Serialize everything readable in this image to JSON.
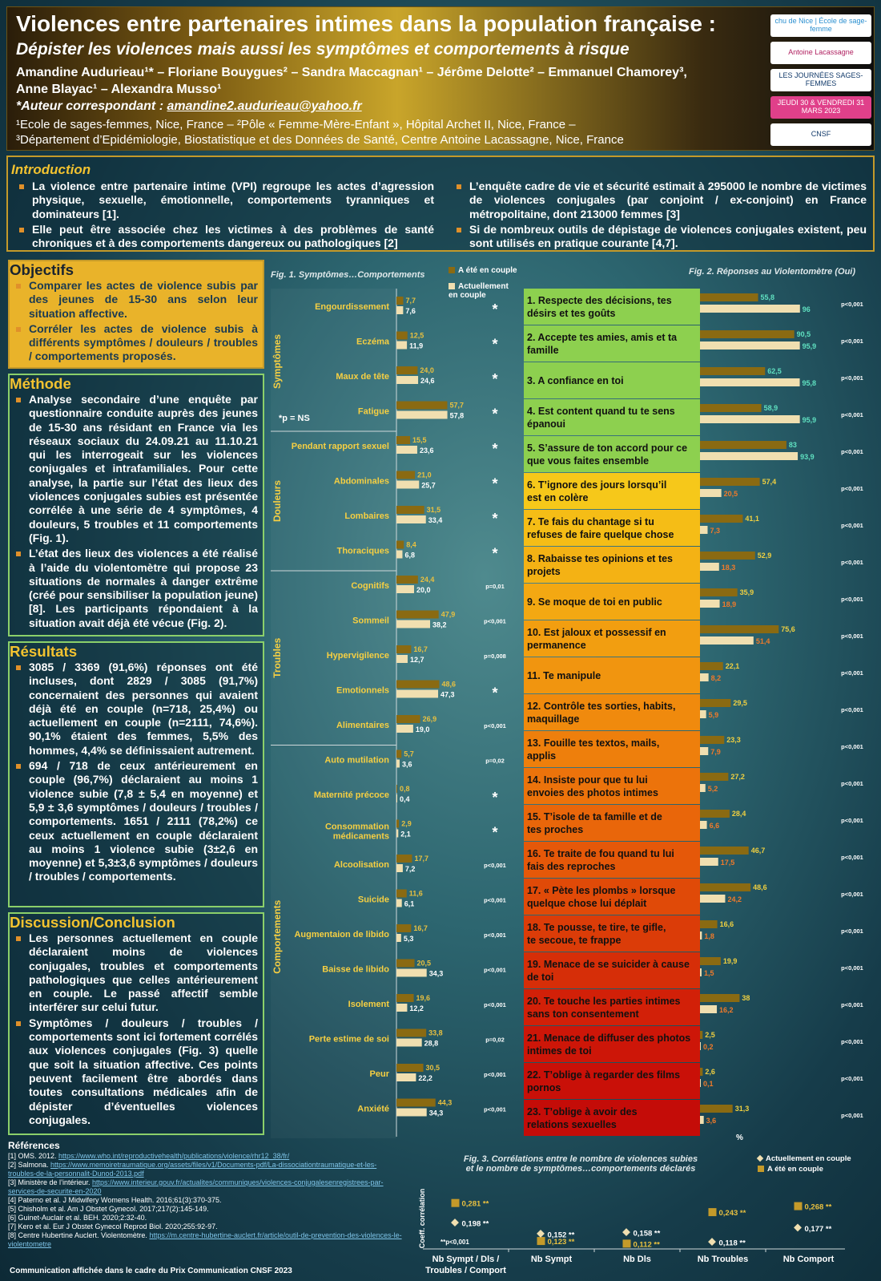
{
  "header": {
    "title": "Violences entre partenaires intimes dans la population française :",
    "subtitle": "Dépister les violences mais aussi les symptômes et comportements à risque",
    "authors_line1": "Amandine Audurieau¹* – Floriane Bouygues² – Sandra Maccagnan¹ – Jérôme Delotte² – Emmanuel Chamorey³,",
    "authors_line2": "Anne Blayac¹ – Alexandra Musso¹",
    "corresp_label": "*Auteur correspondant : ",
    "corresp_email": "amandine2.audurieau@yahoo.fr",
    "aff_line1": "¹Ecole de sages-femmes, Nice, France – ²Pôle « Femme-Mère-Enfant », Hôpital Archet II, Nice, France –",
    "aff_line2": "³Département d’Epidémiologie, Biostatistique et des Données de Santé, Centre Antoine Lacassagne, Nice, France",
    "logos": [
      {
        "text": "chu de Nice | École de sage-femme",
        "bg": "#ffffff",
        "color": "#2a8fd0"
      },
      {
        "text": "Antoine Lacassagne",
        "bg": "#ffffff",
        "color": "#b02060"
      },
      {
        "text": "LES JOURNÉES SAGES-FEMMES",
        "bg": "#ffffff",
        "color": "#123a6a"
      },
      {
        "text": "JEUDI 30 & VENDREDI 31 MARS 2023",
        "bg": "#e0408a",
        "color": "#ffffff"
      },
      {
        "text": "CNSF",
        "bg": "#ffffff",
        "color": "#123a6a"
      }
    ]
  },
  "intro": {
    "title": "Introduction",
    "left": [
      "La violence entre partenaire intime (VPI) regroupe les actes d’agression physique, sexuelle, émotionnelle, comportements tyranniques et dominateurs [1].",
      "Elle peut être associée chez  les victimes à des problèmes de santé chroniques et à des comportements dangereux ou pathologiques [2]"
    ],
    "right": [
      "L’enquête cadre de vie et sécurité estimait à 295000 le nombre de victimes de violences conjugales (par conjoint / ex-conjoint) en France métropolitaine, dont 213000 femmes [3]",
      "Si de nombreux outils de dépistage de violences conjugales existent, peu sont utilisés en pratique courante [4,7]."
    ]
  },
  "objectifs": {
    "title": "Objectifs",
    "items": [
      "Comparer les actes de violence subis par des jeunes de 15-30 ans selon leur situation affective.",
      "Corréler les actes de violence subis à différents symptômes / douleurs / troubles / comportements proposés."
    ]
  },
  "methode": {
    "title": "Méthode",
    "items": [
      "Analyse secondaire d’une enquête par questionnaire conduite auprès des jeunes de 15-30 ans résidant en France via les réseaux sociaux du 24.09.21 au 11.10.21 qui les interrogeait sur les violences conjugales et intrafamiliales. Pour cette analyse, la partie sur l’état des lieux des violences conjugales subies est présentée corrélée à une série de 4 symptômes, 4 douleurs, 5 troubles et 11 comportements (Fig. 1).",
      "L’état des lieux des violences a été réalisé à l’aide du violentomètre qui propose 23 situations de normales à danger extrême (créé pour sensibiliser la population jeune) [8]. Les participants répondaient à la situation avait déjà été vécue  (Fig. 2)."
    ]
  },
  "resultats": {
    "title": "Résultats",
    "items": [
      "3085 / 3369 (91,6%) réponses ont été incluses, dont 2829 / 3085 (91,7%) concernaient des personnes qui avaient déjà été en couple (n=718, 25,4%) ou actuellement en couple (n=2111, 74,6%). 90,1% étaient des femmes, 5,5% des hommes, 4,4% se définissaient autrement.",
      "694 / 718 de ceux antérieurement en couple (96,7%) déclaraient au moins 1 violence subie (7,8 ± 5,4 en moyenne) et 5,9 ± 3,6 symptômes / douleurs / troubles / comportements. 1651 / 2111 (78,2%) ce ceux actuellement en couple déclaraient au moins 1 violence subie (3±2,6 en moyenne) et 5,3±3,6 symptômes / douleurs / troubles / comportements."
    ]
  },
  "discussion": {
    "title": "Discussion/Conclusion",
    "items": [
      "Les personnes actuellement en couple déclaraient moins de violences conjugales, troubles et comportements pathologiques que celles antérieurement en couple. Le passé affectif semble interférer sur celui futur.",
      "Symptômes / douleurs / troubles / comportements sont ici fortement corrélés aux violences conjugales (Fig. 3) quelle que soit la situation affective. Ces points peuvent facilement être abordés dans toutes consultations médicales afin de dépister d’éventuelles violences conjugales."
    ]
  },
  "refs": {
    "title": "Références",
    "items": [
      {
        "t": "[1] OMS. 2012. ",
        "u": "https://www.who.int/reproductivehealth/publications/violence/rhr12_38/fr/"
      },
      {
        "t": "[2] Salmona. ",
        "u": "https://www.memoiretraumatique.org/assets/files/v1/Documents-pdf/La-dissociationtraumatique-et-les-troubles-de-la-personnalit-Dunod-2013.pdf"
      },
      {
        "t": "[3] Ministère de l’intérieur. ",
        "u": "https://www.interieur.gouv.fr/actualites/communiques/violences-conjugalesenregistrees-par-services-de-securite-en-2020"
      },
      {
        "t": "[4] Paterno et al. J Midwifery Womens Health. 2016;61(3):370-375.",
        "u": ""
      },
      {
        "t": "[5] Chisholm et al. Am J Obstet Gynecol. 2017;217(2):145-149.",
        "u": ""
      },
      {
        "t": "[6] Guinet-Auclair et al. BEH. 2020;2:32-40.",
        "u": ""
      },
      {
        "t": "[7] Kero et al. Eur J Obstet Gynecol Reprod Biol. 2020;255:92-97.",
        "u": ""
      },
      {
        "t": "[8] Centre Hubertine Auclert. Violentomètre. ",
        "u": "https://m.centre-hubertine-auclert.fr/article/outil-de-prevention-des-violences-le-violentometre"
      }
    ]
  },
  "footer": "Communication affichée dans le cadre du Prix Communication CNSF 2023",
  "colors": {
    "dark_bar": "#8a6a12",
    "light_bar": "#f0dfb0",
    "accent": "#f2c230",
    "green": "#8dd04f",
    "orange": "#f0a020",
    "red": "#c81010"
  },
  "chart_data": [
    {
      "type": "bar",
      "title": "Fig. 1. Symptômes…Comportements",
      "legend": [
        "A été en couple",
        "Actuellement en couple"
      ],
      "note": "*p = NS",
      "groups": [
        {
          "name": "Symptômes",
          "items": [
            {
              "label": "Engourdissement",
              "a": 7.7,
              "b": 7.6,
              "a_txt": "7,7",
              "b_txt": "7,6",
              "p": "*"
            },
            {
              "label": "Eczéma",
              "a": 12.5,
              "b": 11.9,
              "a_txt": "12,5",
              "b_txt": "11,9",
              "p": "*"
            },
            {
              "label": "Maux de tête",
              "a": 24.0,
              "b": 24.6,
              "a_txt": "24,0",
              "b_txt": "24,6",
              "p": "*"
            },
            {
              "label": "Fatigue",
              "a": 57.7,
              "b": 57.8,
              "a_txt": "57,7",
              "b_txt": "57,8",
              "p": "*"
            }
          ]
        },
        {
          "name": "Douleurs",
          "items": [
            {
              "label": "Pendant rapport sexuel",
              "a": 15.5,
              "b": 23.6,
              "a_txt": "15,5",
              "b_txt": "23,6",
              "p": "*"
            },
            {
              "label": "Abdominales",
              "a": 21.0,
              "b": 25.7,
              "a_txt": "21,0",
              "b_txt": "25,7",
              "p": "*"
            },
            {
              "label": "Lombaires",
              "a": 31.5,
              "b": 33.4,
              "a_txt": "31,5",
              "b_txt": "33,4",
              "p": "*"
            },
            {
              "label": "Thoraciques",
              "a": 8.4,
              "b": 6.8,
              "a_txt": "8,4",
              "b_txt": "6,8",
              "p": "*"
            }
          ]
        },
        {
          "name": "Troubles",
          "items": [
            {
              "label": "Cognitifs",
              "a": 24.4,
              "b": 20.0,
              "a_txt": "24,4",
              "b_txt": "20,0",
              "p": "p=0,01"
            },
            {
              "label": "Sommeil",
              "a": 47.9,
              "b": 38.2,
              "a_txt": "47,9",
              "b_txt": "38,2",
              "p": "p<0,001"
            },
            {
              "label": "Hypervigilence",
              "a": 16.7,
              "b": 12.7,
              "a_txt": "16,7",
              "b_txt": "12,7",
              "p": "p=0,008"
            },
            {
              "label": "Emotionnels",
              "a": 48.6,
              "b": 47.3,
              "a_txt": "48,6",
              "b_txt": "47,3",
              "p": "*"
            },
            {
              "label": "Alimentaires",
              "a": 26.9,
              "b": 19.0,
              "a_txt": "26,9",
              "b_txt": "19,0",
              "p": "p<0,001"
            }
          ]
        },
        {
          "name": "Comportements",
          "items": [
            {
              "label": "Auto mutilation",
              "a": 5.7,
              "b": 3.6,
              "a_txt": "5,7",
              "b_txt": "3,6",
              "p": "p=0,02"
            },
            {
              "label": "Maternité précoce",
              "a": 0.8,
              "b": 0.4,
              "a_txt": "0,8",
              "b_txt": "0,4",
              "p": "*"
            },
            {
              "label": "Consommation médicaments",
              "a": 2.9,
              "b": 2.1,
              "a_txt": "2,9",
              "b_txt": "2,1",
              "p": "*"
            },
            {
              "label": "Alcoolisation",
              "a": 17.7,
              "b": 7.2,
              "a_txt": "17,7",
              "b_txt": "7,2",
              "p": "p<0,001"
            },
            {
              "label": "Suicide",
              "a": 11.6,
              "b": 6.1,
              "a_txt": "11,6",
              "b_txt": "6,1",
              "p": "p<0,001"
            },
            {
              "label": "Augmentaion de libido",
              "a": 16.7,
              "b": 5.3,
              "a_txt": "16,7",
              "b_txt": "5,3",
              "p": "p<0,001"
            },
            {
              "label": "Baisse de libido",
              "a": 20.5,
              "b": 34.3,
              "a_txt": "20,5",
              "b_txt": "34,3",
              "p": "p<0,001"
            },
            {
              "label": "Isolement",
              "a": 19.6,
              "b": 12.2,
              "a_txt": "19,6",
              "b_txt": "12,2",
              "p": "p<0,001"
            },
            {
              "label": "Perte estime de soi",
              "a": 33.8,
              "b": 28.8,
              "a_txt": "33,8",
              "b_txt": "28,8",
              "p": "p=0,02"
            },
            {
              "label": "Peur",
              "a": 30.5,
              "b": 22.2,
              "a_txt": "30,5",
              "b_txt": "22,2",
              "p": "p<0,001"
            },
            {
              "label": "Anxiété",
              "a": 44.3,
              "b": 34.3,
              "a_txt": "44,3",
              "b_txt": "34,3",
              "p": "p<0,001"
            }
          ]
        }
      ]
    },
    {
      "type": "bar",
      "title": "Fig. 2. Réponses au Violentomètre (Oui)",
      "unit": "%",
      "items": [
        {
          "label": "1. Respecte des décisions, tes désirs et tes goûts",
          "a": 55.8,
          "b": 96,
          "a_txt": "55,8",
          "b_txt": "96",
          "p": "p<0,001",
          "zone": "green"
        },
        {
          "label": "2. Accepte tes amies, amis et ta famille",
          "a": 90.5,
          "b": 95.9,
          "a_txt": "90,5",
          "b_txt": "95,9",
          "p": "p<0,001",
          "zone": "green"
        },
        {
          "label": "3. A confiance en toi",
          "a": 62.5,
          "b": 95.8,
          "a_txt": "62,5",
          "b_txt": "95,8",
          "p": "p<0,001",
          "zone": "green"
        },
        {
          "label": "4. Est content quand tu te sens épanoui",
          "a": 58.9,
          "b": 95.9,
          "a_txt": "58,9",
          "b_txt": "95,9",
          "p": "p<0,001",
          "zone": "green"
        },
        {
          "label": "5. S’assure de ton accord pour ce que vous faites ensemble",
          "a": 83,
          "b": 93.9,
          "a_txt": "83",
          "b_txt": "93,9",
          "p": "p<0,001",
          "zone": "green"
        },
        {
          "label": "6. T’ignore des jours lorsqu’il est en colère",
          "a": 57.4,
          "b": 20.5,
          "a_txt": "57,4",
          "b_txt": "20,5",
          "p": "p<0,001",
          "zone": "#f6c81a"
        },
        {
          "label": "7. Te fais du chantage si tu refuses de faire quelque chose",
          "a": 41.1,
          "b": 7.3,
          "a_txt": "41,1",
          "b_txt": "7,3",
          "p": "p<0,001",
          "zone": "#f5bd16"
        },
        {
          "label": "8. Rabaisse tes opinions et tes projets",
          "a": 52.9,
          "b": 18.3,
          "a_txt": "52,9",
          "b_txt": "18,3",
          "p": "p<0,001",
          "zone": "#f4b214"
        },
        {
          "label": "9. Se moque de toi en public",
          "a": 35.9,
          "b": 18.9,
          "a_txt": "35,9",
          "b_txt": "18,9",
          "p": "p<0,001",
          "zone": "#f3a812"
        },
        {
          "label": "10. Est jaloux et possessif en permanence",
          "a": 75.6,
          "b": 51.4,
          "a_txt": "75,6",
          "b_txt": "51,4",
          "p": "p<0,001",
          "zone": "#f29e10"
        },
        {
          "label": "11. Te manipule",
          "a": 22.1,
          "b": 8.2,
          "a_txt": "22,1",
          "b_txt": "8,2",
          "p": "p<0,001",
          "zone": "#f1950f"
        },
        {
          "label": "12. Contrôle tes sorties, habits, maquillage",
          "a": 29.5,
          "b": 5.9,
          "a_txt": "29,5",
          "b_txt": "5,9",
          "p": "p<0,001",
          "zone": "#f08a0d"
        },
        {
          "label": "13. Fouille tes textos, mails, applis",
          "a": 23.3,
          "b": 7.9,
          "a_txt": "23,3",
          "b_txt": "7,9",
          "p": "p<0,001",
          "zone": "#ee7f0c"
        },
        {
          "label": "14. Insiste pour que tu lui envoies des photos intimes",
          "a": 27.2,
          "b": 5.2,
          "a_txt": "27,2",
          "b_txt": "5,2",
          "p": "p<0,001",
          "zone": "#ec730b"
        },
        {
          "label": "15. T’isole de ta famille et de tes proches",
          "a": 28.4,
          "b": 6.6,
          "a_txt": "28,4",
          "b_txt": "6,6",
          "p": "p<0,001",
          "zone": "#e9660a"
        },
        {
          "label": "16. Te traite de fou quand tu lui fais des reproches",
          "a": 46.7,
          "b": 17.5,
          "a_txt": "46,7",
          "b_txt": "17,5",
          "p": "p<0,001",
          "zone": "#e55809"
        },
        {
          "label": "17. « Pète les plombs » lorsque quelque chose lui déplait",
          "a": 48.6,
          "b": 24.2,
          "a_txt": "48,6",
          "b_txt": "24,2",
          "p": "p<0,001",
          "zone": "#e04a08"
        },
        {
          "label": "18. Te pousse, te tire, te gifle, te secoue, te frappe",
          "a": 16.6,
          "b": 1.8,
          "a_txt": "16,6",
          "b_txt": "1,8",
          "p": "p<0,001",
          "zone": "#db3c08"
        },
        {
          "label": "19. Menace de se suicider à cause de toi",
          "a": 19.9,
          "b": 1.5,
          "a_txt": "19,9",
          "b_txt": "1,5",
          "p": "p<0,001",
          "zone": "#d62e08"
        },
        {
          "label": "20. Te touche les parties intimes sans ton consentement",
          "a": 38,
          "b": 16.2,
          "a_txt": "38",
          "b_txt": "16,2",
          "p": "p<0,001",
          "zone": "#d22008"
        },
        {
          "label": "21. Menace de diffuser des photos intimes de toi",
          "a": 2.5,
          "b": 0.2,
          "a_txt": "2,5",
          "b_txt": "0,2",
          "p": "p<0,001",
          "zone": "#cd1608"
        },
        {
          "label": "22. T’oblige à regarder des films pornos",
          "a": 2.6,
          "b": 0.1,
          "a_txt": "2,6",
          "b_txt": "0,1",
          "p": "p<0,001",
          "zone": "#c91008"
        },
        {
          "label": "23. T’oblige à avoir des relations sexuelles",
          "a": 31.3,
          "b": 3.6,
          "a_txt": "31,3",
          "b_txt": "3,6",
          "p": "p<0,001",
          "zone": "#c40c08"
        }
      ]
    },
    {
      "type": "scatter",
      "title_line1": "Fig. 3. Corrélations entre le nombre de violences subies",
      "title_line2": "et le nombre de symptômes…comportements déclarés",
      "ylabel": "Coeff. corrélation",
      "legend": [
        "Actuellement en couple",
        "A été en couple"
      ],
      "note": "p<0,001",
      "categories": [
        "Nb Sympt / Dls / Troubles / Comport",
        "Nb Sympt",
        "Nb Dls",
        "Nb Troubles",
        "Nb Comport"
      ],
      "series": [
        {
          "name": "A été en couple",
          "values": [
            0.281,
            0.123,
            0.112,
            0.243,
            0.268
          ],
          "labels": [
            "0,281",
            "0,123",
            "0,112",
            "0,243",
            "0,268"
          ]
        },
        {
          "name": "Actuellement en couple",
          "values": [
            0.198,
            0.152,
            0.158,
            0.118,
            0.177
          ],
          "labels": [
            "0,198",
            "0,152",
            "0,158",
            "0,118",
            "0,177"
          ]
        }
      ]
    }
  ]
}
